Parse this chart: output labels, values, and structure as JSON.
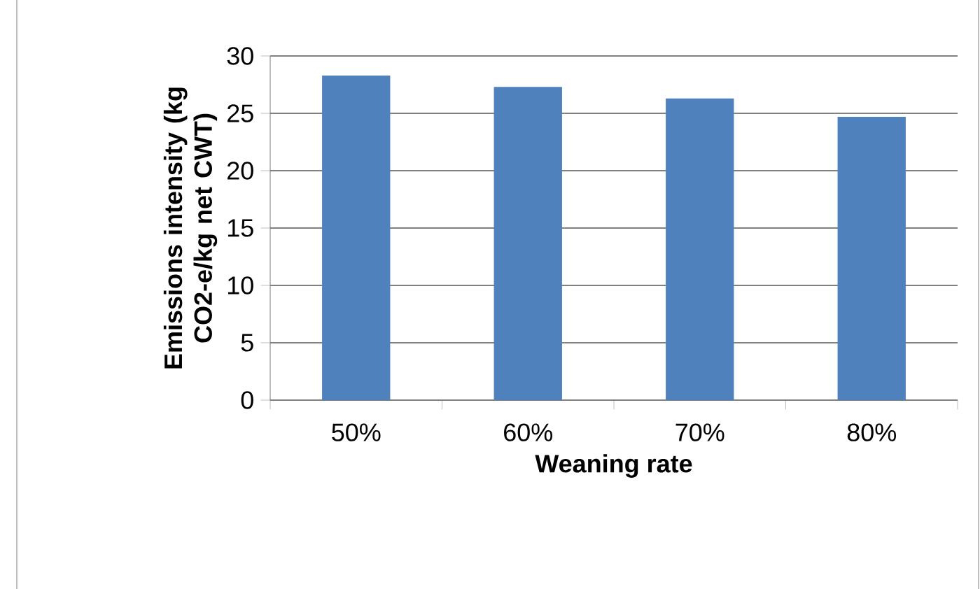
{
  "chart_data": {
    "type": "bar",
    "xlabel": "Weaning rate",
    "ylabel": "Emissions intensity (kg CO2-e/kg net CWT)",
    "categories": [
      "50%",
      "60%",
      "70%",
      "80%"
    ],
    "values": [
      28.3,
      27.3,
      26.3,
      24.7
    ],
    "color": "#4f81bd",
    "ylim": [
      0,
      30
    ],
    "yticks": [
      0,
      5,
      10,
      15,
      20,
      25,
      30
    ],
    "grid": "y"
  }
}
